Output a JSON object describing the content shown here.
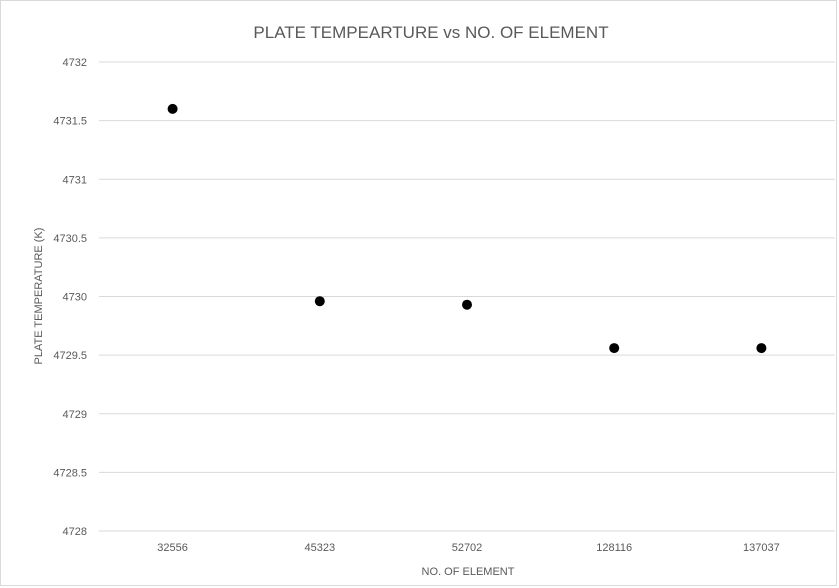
{
  "chart_data": {
    "type": "scatter",
    "title": "PLATE TEMPEARTURE vs NO. OF ELEMENT",
    "xlabel": "NO. OF ELEMENT",
    "ylabel": "PLATE TEMPERATURE (K)",
    "categories": [
      "32556",
      "45323",
      "52702",
      "128116",
      "137037"
    ],
    "values": [
      4731.6,
      4729.96,
      4729.93,
      4729.56,
      4729.56
    ],
    "ylim": [
      4728,
      4732
    ],
    "yticks": [
      "4728",
      "4728.5",
      "4729",
      "4729.5",
      "4730",
      "4730.5",
      "4731",
      "4731.5",
      "4732"
    ],
    "grid": true,
    "legend": "none",
    "marker_color": "#000000"
  }
}
